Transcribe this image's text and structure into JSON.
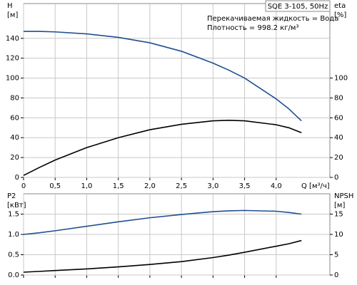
{
  "chart_data": [
    {
      "type": "line",
      "title": "SQE 3-105, 50Hz",
      "annotations": [
        "Перекачиваемая жидкость = Вода",
        "Плотность = 998.2 кг/м³"
      ],
      "ylabel": [
        "H",
        "[м]"
      ],
      "y2label": [
        "eta",
        "[%]"
      ],
      "xlabel": "Q [м³/ч]",
      "x": [
        0,
        0.25,
        0.5,
        1,
        1.5,
        2,
        2.5,
        3,
        3.25,
        3.5,
        4,
        4.2,
        4.4
      ],
      "xlim": [
        0,
        4.85
      ],
      "xticks": [
        0,
        {
          "value": 0.5,
          "label": "0,5"
        },
        {
          "value": 1,
          "label": "1,0"
        },
        {
          "value": 1.5,
          "label": "1,5"
        },
        {
          "value": 2,
          "label": "2,0"
        },
        {
          "value": 2.5,
          "label": "2,5"
        },
        {
          "value": 3,
          "label": "3,0"
        },
        {
          "value": 3.5,
          "label": "3,5"
        },
        {
          "value": 4,
          "label": "4,0"
        }
      ],
      "ylim": [
        0,
        175
      ],
      "yticks": [
        0,
        20,
        40,
        60,
        80,
        100,
        120,
        140
      ],
      "y2lim": [
        0,
        175
      ],
      "y2ticks": [
        0,
        20,
        40,
        60,
        80,
        100
      ],
      "grid": true,
      "series": [
        {
          "color": "#1f4f8f",
          "values": [
            147,
            147,
            146.5,
            144.5,
            141,
            135.5,
            127,
            115,
            108,
            100,
            79,
            69,
            57
          ]
        },
        {
          "color": "#000000",
          "axis": "y2",
          "values": [
            2,
            10,
            17.5,
            30,
            40,
            48,
            53.5,
            57,
            57.5,
            57,
            53,
            50,
            45
          ]
        }
      ]
    },
    {
      "type": "line",
      "ylabel": [
        "P2",
        "[кВт]"
      ],
      "y2label": [
        "NPSH",
        "[м]"
      ],
      "x": [
        0,
        0.25,
        0.5,
        1,
        1.5,
        2,
        2.5,
        3,
        3.25,
        3.5,
        4,
        4.2,
        4.4
      ],
      "xlim": [
        0,
        4.85
      ],
      "xticks": [
        0,
        0.5,
        1,
        1.5,
        2,
        2.5,
        3,
        3.5,
        4
      ],
      "ylim": [
        0,
        2.0
      ],
      "yticks": [
        {
          "value": 0,
          "label": "0.0"
        },
        0.5,
        {
          "value": 1,
          "label": "1.0"
        },
        1.5
      ],
      "y2lim": [
        0,
        20
      ],
      "y2ticks": [
        0,
        5,
        10,
        15
      ],
      "grid": true,
      "series": [
        {
          "color": "#1f4f8f",
          "values": [
            1.0,
            1.04,
            1.09,
            1.2,
            1.31,
            1.41,
            1.49,
            1.56,
            1.58,
            1.59,
            1.57,
            1.54,
            1.5
          ]
        },
        {
          "color": "#000000",
          "axis": "y2",
          "values": [
            0.7,
            0.9,
            1.1,
            1.5,
            2.0,
            2.6,
            3.3,
            4.3,
            4.9,
            5.6,
            7.1,
            7.7,
            8.5
          ]
        }
      ]
    }
  ]
}
